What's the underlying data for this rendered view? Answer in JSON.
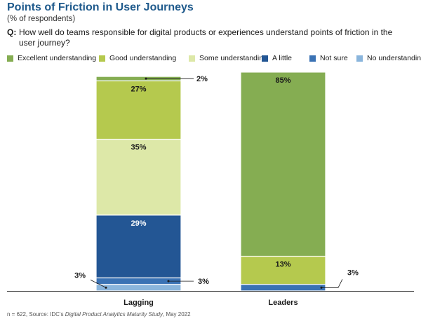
{
  "header": {
    "title": "Points of Friction in User Journeys",
    "subtitle": "(% of respondents)",
    "question_prefix": "Q:",
    "question_text": "How well do teams responsible for digital products or experiences understand points of friction in the user journey?"
  },
  "source": {
    "prefix": "n = 622, Source: IDC's ",
    "study": "Digital Product Analytics Maturity Study",
    "suffix": ", May 2022"
  },
  "colors": {
    "excellent": "#85ad52",
    "good": "#b5c94e",
    "some": "#dde8a8",
    "little": "#235694",
    "not_sure": "#3a72b4",
    "none": "#8ab5dc"
  },
  "chart_data": {
    "type": "bar",
    "stacked": true,
    "ylim": [
      0,
      100
    ],
    "categories": [
      "Lagging",
      "Leaders"
    ],
    "series": [
      {
        "name": "No understanding",
        "values": [
          3,
          0
        ]
      },
      {
        "name": "Not sure",
        "values": [
          3,
          3
        ]
      },
      {
        "name": "A little",
        "values": [
          29,
          0
        ]
      },
      {
        "name": "Some understanding",
        "values": [
          35,
          0
        ]
      },
      {
        "name": "Good understanding",
        "values": [
          27,
          13
        ]
      },
      {
        "name": "Excellent understanding",
        "values": [
          2,
          85
        ]
      }
    ],
    "data_labels": [
      [
        "3%",
        ""
      ],
      [
        "3%",
        "3%"
      ],
      [
        "29%",
        ""
      ],
      [
        "35%",
        ""
      ],
      [
        "27%",
        "13%"
      ],
      [
        "2%",
        "85%"
      ]
    ],
    "legend": [
      "Excellent understanding",
      "Good understanding",
      "Some understanding",
      "A little",
      "Not sure",
      "No understanding"
    ],
    "legend_position": "top",
    "grid": false
  }
}
